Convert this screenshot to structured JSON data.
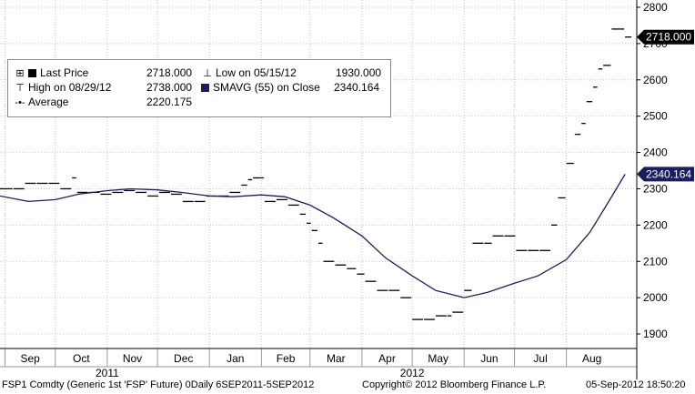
{
  "chart_data": {
    "type": "line",
    "title": "",
    "xlabel": "",
    "ylabel": "",
    "ylim": [
      1860,
      2820
    ],
    "y_ticks": [
      1900,
      2000,
      2100,
      2200,
      2300,
      2400,
      2500,
      2600,
      2700,
      2800
    ],
    "x_ticks": [
      {
        "date": "2011-09-01",
        "label": "Sep"
      },
      {
        "date": "2011-10-01",
        "label": "Oct"
      },
      {
        "date": "2011-11-01",
        "label": "Nov"
      },
      {
        "date": "2011-12-01",
        "label": "Dec"
      },
      {
        "date": "2012-01-01",
        "label": "Jan"
      },
      {
        "date": "2012-02-01",
        "label": "Feb"
      },
      {
        "date": "2012-03-01",
        "label": "Mar"
      },
      {
        "date": "2012-04-01",
        "label": "Apr"
      },
      {
        "date": "2012-05-01",
        "label": "May"
      },
      {
        "date": "2012-06-01",
        "label": "Jun"
      },
      {
        "date": "2012-07-01",
        "label": "Jul"
      },
      {
        "date": "2012-08-01",
        "label": "Aug"
      }
    ],
    "year_labels": [
      {
        "date": "2011-11-01",
        "label": "2011"
      },
      {
        "date": "2012-05-01",
        "label": "2012"
      }
    ],
    "xlim": [
      "2011-08-29",
      "2012-09-12"
    ],
    "grid": true,
    "legend": "top-left",
    "series": [
      {
        "name": "Last Price",
        "style": "step",
        "color": "#000000",
        "points": [
          [
            "2011-08-29",
            2300
          ],
          [
            "2011-09-06",
            2300
          ],
          [
            "2011-09-13",
            2315
          ],
          [
            "2011-09-20",
            2315
          ],
          [
            "2011-09-27",
            2315
          ],
          [
            "2011-10-04",
            2300
          ],
          [
            "2011-10-11",
            2330
          ],
          [
            "2011-10-14",
            2290
          ],
          [
            "2011-10-21",
            2290
          ],
          [
            "2011-10-28",
            2285
          ],
          [
            "2011-11-04",
            2290
          ],
          [
            "2011-11-11",
            2295
          ],
          [
            "2011-11-18",
            2290
          ],
          [
            "2011-11-25",
            2280
          ],
          [
            "2011-12-02",
            2290
          ],
          [
            "2011-12-09",
            2285
          ],
          [
            "2011-12-16",
            2265
          ],
          [
            "2011-12-23",
            2265
          ],
          [
            "2011-12-30",
            2280
          ],
          [
            "2012-01-06",
            2280
          ],
          [
            "2012-01-13",
            2290
          ],
          [
            "2012-01-20",
            2310
          ],
          [
            "2012-01-24",
            2325
          ],
          [
            "2012-01-27",
            2330
          ],
          [
            "2012-02-03",
            2265
          ],
          [
            "2012-02-10",
            2270
          ],
          [
            "2012-02-17",
            2255
          ],
          [
            "2012-02-24",
            2230
          ],
          [
            "2012-02-28",
            2205
          ],
          [
            "2012-03-02",
            2185
          ],
          [
            "2012-03-06",
            2150
          ],
          [
            "2012-03-09",
            2100
          ],
          [
            "2012-03-16",
            2090
          ],
          [
            "2012-03-23",
            2080
          ],
          [
            "2012-03-29",
            2065
          ],
          [
            "2012-04-03",
            2045
          ],
          [
            "2012-04-10",
            2020
          ],
          [
            "2012-04-17",
            2020
          ],
          [
            "2012-04-24",
            2000
          ],
          [
            "2012-05-01",
            1940
          ],
          [
            "2012-05-08",
            1940
          ],
          [
            "2012-05-15",
            1950
          ],
          [
            "2012-05-22",
            1950
          ],
          [
            "2012-05-25",
            1960
          ],
          [
            "2012-06-01",
            2020
          ],
          [
            "2012-06-06",
            2150
          ],
          [
            "2012-06-13",
            2150
          ],
          [
            "2012-06-18",
            2170
          ],
          [
            "2012-06-25",
            2170
          ],
          [
            "2012-07-02",
            2130
          ],
          [
            "2012-07-09",
            2130
          ],
          [
            "2012-07-16",
            2130
          ],
          [
            "2012-07-23",
            2200
          ],
          [
            "2012-07-27",
            2275
          ],
          [
            "2012-08-01",
            2370
          ],
          [
            "2012-08-06",
            2450
          ],
          [
            "2012-08-10",
            2480
          ],
          [
            "2012-08-13",
            2540
          ],
          [
            "2012-08-17",
            2580
          ],
          [
            "2012-08-20",
            2630
          ],
          [
            "2012-08-23",
            2640
          ],
          [
            "2012-08-28",
            2740
          ],
          [
            "2012-09-05",
            2718
          ]
        ]
      },
      {
        "name": "SMAVG (55) on Close",
        "style": "line",
        "color": "#1a1f5c",
        "points": [
          [
            "2011-08-29",
            2280
          ],
          [
            "2011-09-15",
            2265
          ],
          [
            "2011-10-01",
            2270
          ],
          [
            "2011-10-15",
            2285
          ],
          [
            "2011-11-01",
            2295
          ],
          [
            "2011-11-15",
            2300
          ],
          [
            "2011-12-01",
            2297
          ],
          [
            "2011-12-15",
            2290
          ],
          [
            "2012-01-01",
            2280
          ],
          [
            "2012-01-15",
            2278
          ],
          [
            "2012-02-01",
            2283
          ],
          [
            "2012-02-15",
            2278
          ],
          [
            "2012-03-01",
            2255
          ],
          [
            "2012-03-15",
            2220
          ],
          [
            "2012-04-01",
            2170
          ],
          [
            "2012-04-15",
            2110
          ],
          [
            "2012-05-01",
            2060
          ],
          [
            "2012-05-15",
            2020
          ],
          [
            "2012-06-01",
            2000
          ],
          [
            "2012-06-15",
            2015
          ],
          [
            "2012-07-01",
            2040
          ],
          [
            "2012-07-15",
            2060
          ],
          [
            "2012-08-01",
            2105
          ],
          [
            "2012-08-15",
            2180
          ],
          [
            "2012-08-25",
            2255
          ],
          [
            "2012-09-05",
            2340
          ]
        ]
      }
    ],
    "legend_entries": [
      {
        "icon": "square",
        "label": "Last Price",
        "value": "2718.000"
      },
      {
        "icon": "low-marker",
        "label": "Low on 05/15/12",
        "value": "1930.000"
      },
      {
        "icon": "high-marker",
        "label": "High on 08/29/12",
        "value": "2738.000"
      },
      {
        "icon": "square",
        "label": "SMAVG (55) on Close",
        "value": "2340.164"
      },
      {
        "icon": "average-marker",
        "label": "Average",
        "value": "2220.175"
      }
    ],
    "last_price_tag": {
      "value": 2718,
      "label": "2718.000",
      "color": "#000000"
    },
    "sma_tag": {
      "value": 2340.164,
      "label": "2340.164",
      "color": "#1a1f5c"
    }
  },
  "footer": {
    "left": "FSP1 Comdty (Generic 1st 'FSP' Future) 0Daily 6SEP2011-5SEP2012",
    "center": "Copyright© 2012 Bloomberg Finance L.P.",
    "right": "05-Sep-2012 18:50:20"
  },
  "colors": {
    "grid": "#c8c8c8",
    "axis": "#000000",
    "price": "#000000",
    "sma": "#1a1f5c",
    "background": "#ffffff"
  }
}
